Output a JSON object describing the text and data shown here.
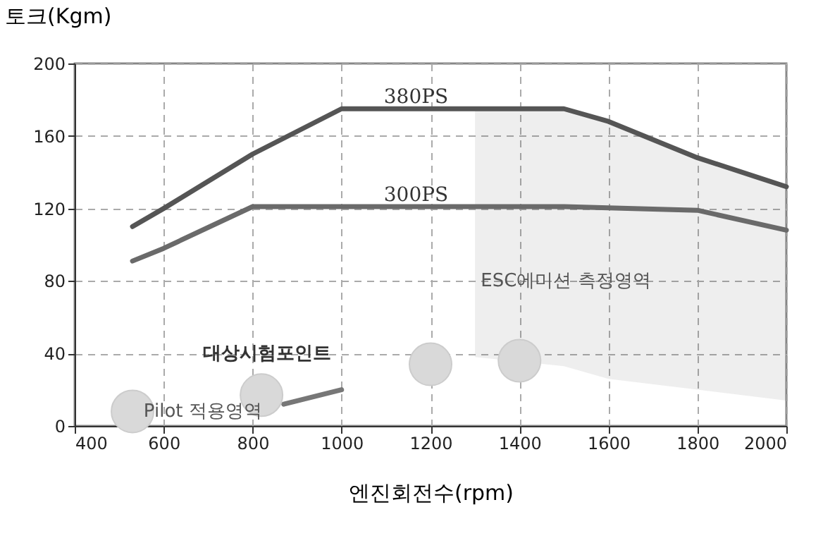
{
  "chart_data": {
    "type": "line",
    "xlabel": "엔진회전수(rpm)",
    "ylabel": "토크(Kgm)",
    "xlim": [
      400,
      2000
    ],
    "xticks": [
      400,
      600,
      800,
      1000,
      1200,
      1400,
      1600,
      1800,
      2000
    ],
    "ylim": [
      0,
      200
    ],
    "yticks": [
      0,
      40,
      80,
      120,
      160,
      200
    ],
    "grid": true,
    "series": [
      {
        "name": "380PS",
        "color": "#555555",
        "x": [
          530,
          600,
          800,
          1000,
          1300,
          1500,
          1600,
          1800,
          2000
        ],
        "values": [
          110,
          120,
          150,
          175,
          175,
          175,
          168,
          148,
          132
        ],
        "lower": [
          null,
          null,
          null,
          null,
          38,
          33,
          26,
          20,
          14
        ],
        "upper": [
          null,
          null,
          null,
          null,
          175,
          175,
          168,
          148,
          132
        ]
      },
      {
        "name": "300PS",
        "color": "#6a6a6a",
        "x": [
          530,
          600,
          800,
          1000,
          1500,
          1800,
          2000
        ],
        "values": [
          91,
          98,
          121,
          121,
          121,
          119,
          108
        ]
      },
      {
        "color": "#777777",
        "x": [
          870,
          1000
        ],
        "values": [
          12,
          20
        ]
      },
      {
        "type": "scatter",
        "marker": "circle",
        "color": "#d9d9d9",
        "x": [
          530,
          820,
          1200,
          1400
        ],
        "values": [
          8,
          17,
          34,
          36
        ]
      }
    ],
    "annotations": [
      "ESC에미션 측정영역",
      "대상시험포인트",
      "Pilot 적용영역"
    ]
  }
}
